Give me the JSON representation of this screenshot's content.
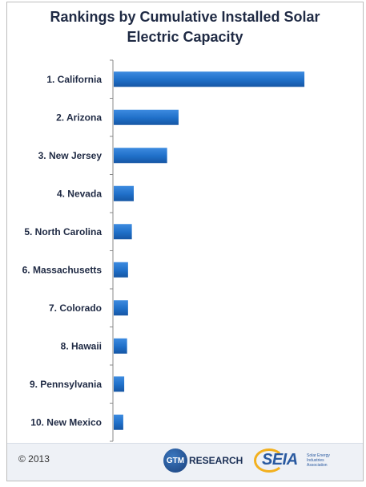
{
  "chart_data": {
    "type": "bar",
    "orientation": "horizontal",
    "title": "Rankings by Cumulative Installed Solar Electric Capacity",
    "title_lines": [
      "Rankings by Cumulative Installed Solar",
      "Electric Capacity"
    ],
    "categories": [
      "1. California",
      "2. Arizona",
      "3. New Jersey",
      "4. Nevada",
      "5. North Carolina",
      "6. Massachusetts",
      "7. Colorado",
      "8. Hawaii",
      "9. Pennsylvania",
      "10. New Mexico"
    ],
    "values": [
      100,
      34,
      28,
      10.5,
      9.5,
      7.5,
      7.5,
      7,
      5.5,
      5
    ],
    "xlim": [
      0,
      126
    ],
    "bar_color": "#1f6fc8",
    "grid": false,
    "legend": "none"
  },
  "footer": {
    "copyright": "© 2013",
    "gtm_badge": "GTM",
    "gtm_label": "RESEARCH",
    "seia_label": "SEIA",
    "seia_sub": "Solar Energy Industries Association"
  }
}
